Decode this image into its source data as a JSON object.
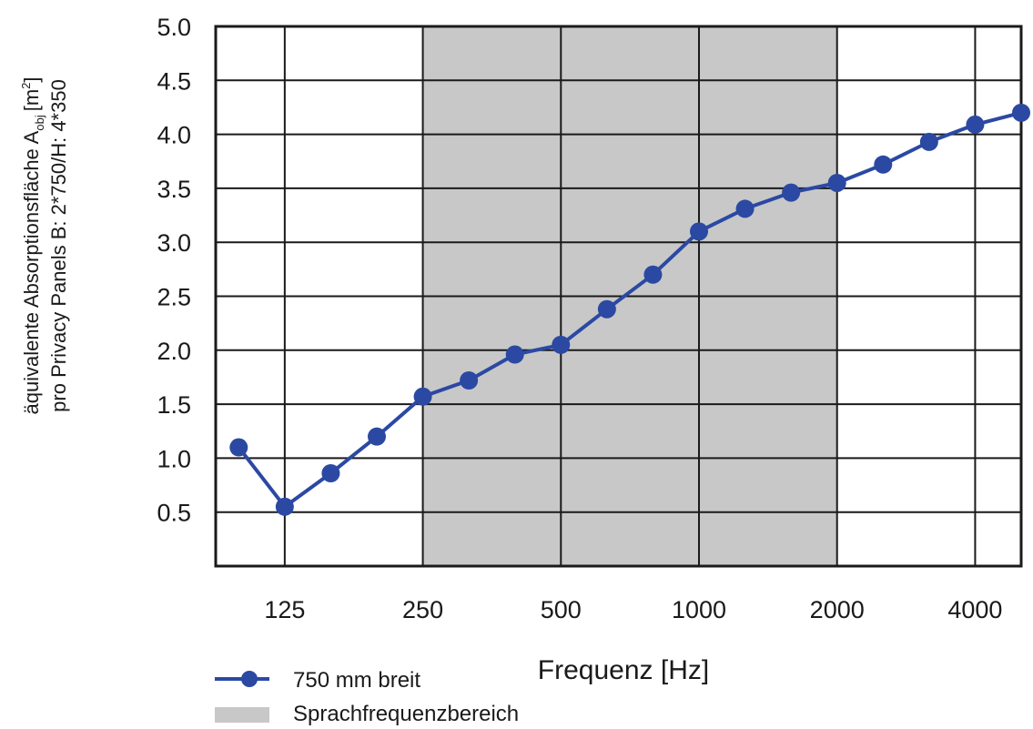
{
  "chart_data": {
    "type": "line",
    "title": "",
    "x": [
      "100",
      "125",
      "160",
      "200",
      "250",
      "315",
      "400",
      "500",
      "630",
      "800",
      "1000",
      "1250",
      "1600",
      "2000",
      "2500",
      "3150",
      "4000",
      "5000"
    ],
    "x_tick_labels": [
      "125",
      "250",
      "500",
      "1000",
      "2000",
      "4000"
    ],
    "xlabel": "Frequenz [Hz]",
    "ylabel_line1": "äquivalente Absorptionsfläche A",
    "ylabel_subscript": "obj",
    "ylabel_unit_prefix": "[m",
    "ylabel_unit_sup": "2",
    "ylabel_unit_suffix": "]",
    "ylabel_line2": "pro Privacy Panels B: 2*750/H: 4*350",
    "ylim": [
      0,
      5.0
    ],
    "y_ticks": [
      "0.5",
      "1.0",
      "1.5",
      "2.0",
      "2.5",
      "3.0",
      "3.5",
      "4.0",
      "4.5",
      "5.0"
    ],
    "series": [
      {
        "name": "750 mm breit",
        "color": "#2b49a3",
        "values": [
          1.1,
          0.55,
          0.86,
          1.2,
          1.57,
          1.72,
          1.96,
          2.05,
          2.38,
          2.7,
          3.1,
          3.31,
          3.46,
          3.55,
          3.72,
          3.93,
          4.09,
          4.2
        ]
      }
    ],
    "shaded_region": {
      "name": "Sprachfrequenzbereich",
      "from": "250",
      "to": "2000",
      "color": "#c8c8c8"
    },
    "grid": true,
    "legend_position": "bottom-left"
  }
}
